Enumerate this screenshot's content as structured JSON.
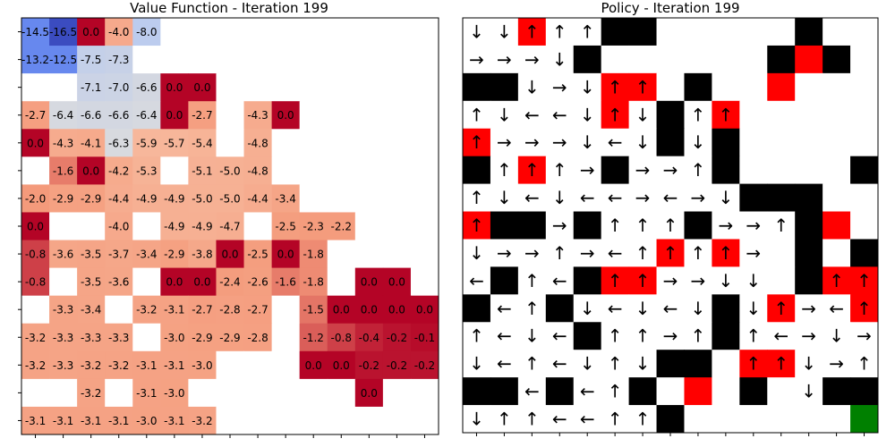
{
  "chart_data": [
    {
      "type": "heatmap",
      "title": "Value Function - Iteration 199",
      "rows": 15,
      "cols": 15,
      "cells": [
        [
          -14.5,
          -16.5,
          0.0,
          -4.0,
          -8.0,
          null,
          null,
          null,
          null,
          null,
          null,
          null,
          null,
          null,
          null
        ],
        [
          -13.2,
          -12.5,
          -7.5,
          -7.3,
          null,
          null,
          null,
          null,
          null,
          null,
          null,
          null,
          null,
          null,
          null
        ],
        [
          null,
          null,
          -7.1,
          -7.0,
          -6.6,
          0.0,
          0.0,
          null,
          null,
          null,
          null,
          null,
          null,
          null,
          null
        ],
        [
          -2.7,
          -6.4,
          -6.6,
          -6.6,
          -6.4,
          0.0,
          -2.7,
          null,
          -4.3,
          0.0,
          null,
          null,
          null,
          null,
          null
        ],
        [
          0.0,
          -4.3,
          -4.1,
          -6.3,
          -5.9,
          -5.7,
          -5.4,
          null,
          -4.8,
          null,
          null,
          null,
          null,
          null,
          null
        ],
        [
          null,
          -1.6,
          0.0,
          -4.2,
          -5.3,
          null,
          -5.1,
          -5.0,
          -4.8,
          null,
          null,
          null,
          null,
          null,
          null
        ],
        [
          -2.0,
          -2.9,
          -2.9,
          -4.4,
          -4.9,
          -4.9,
          -5.0,
          -5.0,
          -4.4,
          -3.4,
          null,
          null,
          null,
          null,
          null
        ],
        [
          0.0,
          null,
          null,
          -4.0,
          null,
          -4.9,
          -4.9,
          -4.7,
          null,
          -2.5,
          -2.3,
          -2.2,
          null,
          null,
          null
        ],
        [
          -0.8,
          -3.6,
          -3.5,
          -3.7,
          -3.4,
          -2.9,
          -3.8,
          0.0,
          -2.5,
          0.0,
          -1.8,
          null,
          null,
          null,
          null
        ],
        [
          -0.8,
          null,
          -3.5,
          -3.6,
          null,
          0.0,
          0.0,
          -2.4,
          -2.6,
          -1.6,
          -1.8,
          null,
          0.0,
          0.0,
          null
        ],
        [
          null,
          -3.3,
          -3.4,
          null,
          -3.2,
          -3.1,
          -2.7,
          -2.8,
          -2.7,
          null,
          -1.5,
          0.0,
          0.0,
          0.0,
          0.0
        ],
        [
          -3.2,
          -3.3,
          -3.3,
          -3.3,
          null,
          -3.0,
          -2.9,
          -2.9,
          -2.8,
          null,
          -1.2,
          -0.8,
          -0.4,
          -0.2,
          -0.1
        ],
        [
          -3.2,
          -3.3,
          -3.2,
          -3.2,
          -3.1,
          -3.1,
          -3.0,
          null,
          null,
          null,
          0.0,
          0.0,
          -0.2,
          -0.2,
          -0.2
        ],
        [
          null,
          null,
          -3.2,
          null,
          -3.1,
          -3.0,
          null,
          null,
          null,
          null,
          null,
          null,
          0.0,
          null,
          null
        ],
        [
          -3.1,
          -3.1,
          -3.1,
          -3.1,
          -3.0,
          -3.1,
          -3.2,
          null,
          null,
          null,
          null,
          null,
          null,
          null,
          null
        ]
      ],
      "colors": {
        "zero_cell": "#b40426",
        "very_low": "#3b4cc0",
        "low": "#6788ee",
        "mid_low": "#9abbff",
        "neutral": "#dddcdc",
        "mid_high": "#f7b89c",
        "high": "#f49a7b",
        "empty": "#ffffff"
      },
      "grid": false,
      "legend": "none"
    },
    {
      "type": "heatmap",
      "title": "Policy - Iteration 199",
      "rows": 15,
      "cols": 15,
      "cells": [
        [
          "↓",
          "↓",
          "R↑",
          "↑",
          "↑",
          "W",
          "W",
          "",
          "",
          "",
          "",
          "",
          "W",
          "",
          ""
        ],
        [
          "→",
          "→",
          "→",
          "↓",
          "W",
          "",
          "",
          "",
          "",
          "",
          "",
          "W",
          "R",
          "W",
          ""
        ],
        [
          "W",
          "W",
          "↓",
          "→",
          "↓",
          "R↑",
          "R↑",
          "",
          "W",
          "",
          "",
          "R",
          "",
          "",
          ""
        ],
        [
          "↑",
          "↓",
          "←",
          "←",
          "↓",
          "R↑",
          "↓",
          "W",
          "↑",
          "R↑",
          "",
          "",
          "",
          "",
          ""
        ],
        [
          "R↑",
          "→",
          "→",
          "→",
          "↓",
          "←",
          "↓",
          "W",
          "↓",
          "W",
          "",
          "",
          "",
          "",
          ""
        ],
        [
          "W",
          "↑",
          "R↑",
          "↑",
          "→",
          "W",
          "→",
          "→",
          "↑",
          "W",
          "",
          "",
          "",
          "",
          "W"
        ],
        [
          "↑",
          "↓",
          "←",
          "↓",
          "←",
          "←",
          "→",
          "←",
          "→",
          "↓",
          "W",
          "W",
          "W",
          "",
          ""
        ],
        [
          "R↑",
          "W",
          "W",
          "→",
          "W",
          "↑",
          "↑",
          "↑",
          "W",
          "→",
          "→",
          "↑",
          "W",
          "R",
          ""
        ],
        [
          "↓",
          "→",
          "→",
          "↑",
          "→",
          "←",
          "↑",
          "R↑",
          "↑",
          "R↑",
          "→",
          "",
          "W",
          "",
          "W"
        ],
        [
          "←",
          "W",
          "↑",
          "←",
          "W",
          "R↑",
          "R↑",
          "→",
          "→",
          "↓",
          "↓",
          "",
          "W",
          "R↑",
          "R↑"
        ],
        [
          "W",
          "←",
          "↑",
          "W",
          "↓",
          "←",
          "↓",
          "←",
          "↓",
          "W",
          "↓",
          "R↑",
          "→",
          "←",
          "R↑"
        ],
        [
          "↑",
          "←",
          "↓",
          "←",
          "W",
          "↑",
          "↑",
          "→",
          "↑",
          "W",
          "↑",
          "←",
          "→",
          "↓",
          "→"
        ],
        [
          "↓",
          "←",
          "↑",
          "←",
          "↓",
          "↑",
          "↓",
          "W",
          "W",
          "",
          "R↑",
          "R↑",
          "↓",
          "→",
          "↑"
        ],
        [
          "W",
          "W",
          "←",
          "W",
          "←",
          "↑",
          "W",
          "",
          "R",
          "",
          "W",
          "",
          "↓",
          "W",
          "W"
        ],
        [
          "↓",
          "↑",
          "↑",
          "←",
          "←",
          "↑",
          "↑",
          "W",
          "",
          "",
          "",
          "",
          "",
          "",
          "G"
        ]
      ],
      "legend_codes": {
        "W": "wall",
        "R": "red cell",
        "G": "goal"
      },
      "colors": {
        "wall": "#000000",
        "red": "#ff0000",
        "goal": "#008000",
        "empty": "#ffffff"
      },
      "grid": false,
      "legend": "none"
    }
  ]
}
